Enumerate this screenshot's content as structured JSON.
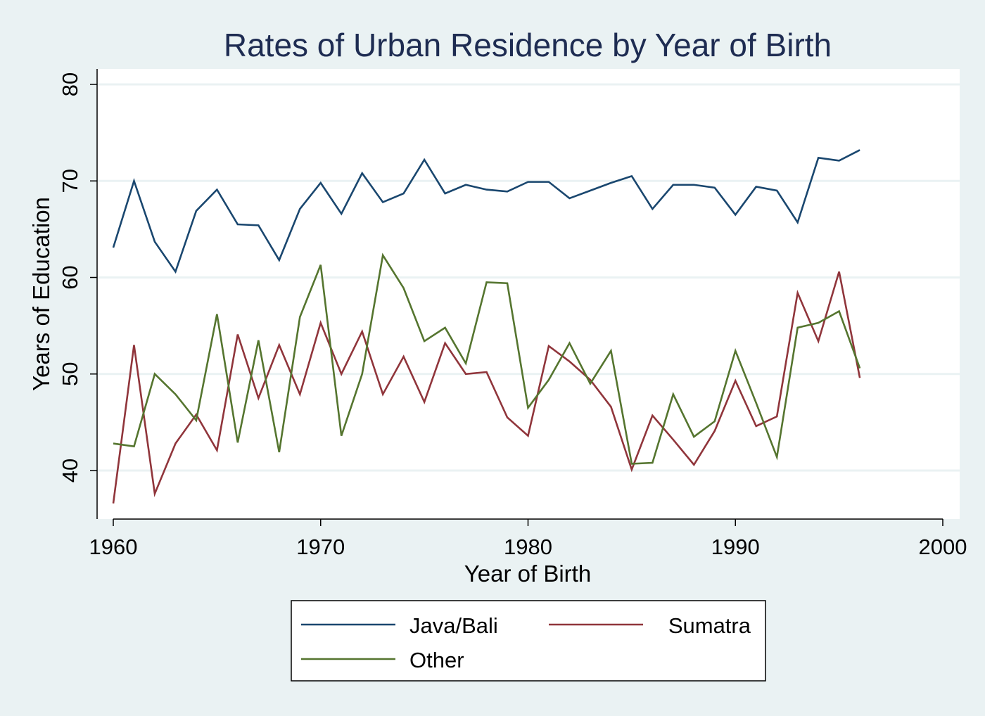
{
  "chart_data": {
    "type": "line",
    "title": "Rates of Urban Residence by Year of Birth",
    "xlabel": "Year of Birth",
    "ylabel": "Years of Education",
    "xlim": [
      1960,
      2000
    ],
    "ylim": [
      35,
      81.5
    ],
    "xticks": [
      1960,
      1970,
      1980,
      1990,
      2000
    ],
    "yticks": [
      40,
      50,
      60,
      70,
      80
    ],
    "grid": "horizontal",
    "legend_position": "bottom",
    "x": [
      1960,
      1961,
      1962,
      1963,
      1964,
      1965,
      1966,
      1967,
      1968,
      1969,
      1970,
      1971,
      1972,
      1973,
      1974,
      1975,
      1976,
      1977,
      1978,
      1979,
      1980,
      1981,
      1982,
      1983,
      1984,
      1985,
      1986,
      1987,
      1988,
      1989,
      1990,
      1991,
      1992,
      1993,
      1994,
      1995,
      1996
    ],
    "series": [
      {
        "name": "Java/Bali",
        "color": "#1a476f",
        "values": [
          63.1,
          70.0,
          63.7,
          60.6,
          66.9,
          69.1,
          65.5,
          65.4,
          61.8,
          67.1,
          69.8,
          66.6,
          70.8,
          67.8,
          68.7,
          72.2,
          68.7,
          69.6,
          69.1,
          68.9,
          69.9,
          69.9,
          68.2,
          69.0,
          69.8,
          70.5,
          67.1,
          69.6,
          69.6,
          69.3,
          66.5,
          69.4,
          69.0,
          65.7,
          72.4,
          72.1,
          73.2
        ]
      },
      {
        "name": "Sumatra",
        "color": "#90353b",
        "values": [
          36.6,
          53.0,
          37.6,
          42.8,
          45.8,
          42.1,
          54.1,
          47.5,
          53.0,
          47.9,
          55.3,
          50.0,
          54.4,
          47.9,
          51.8,
          47.1,
          53.2,
          50.0,
          50.2,
          45.5,
          43.6,
          52.9,
          51.3,
          49.4,
          46.6,
          40.1,
          45.7,
          43.2,
          40.6,
          44.1,
          49.3,
          44.6,
          45.6,
          58.4,
          53.4,
          60.6,
          49.6
        ]
      },
      {
        "name": "Other",
        "color": "#55752f",
        "values": [
          42.8,
          42.5,
          50.0,
          47.9,
          45.2,
          56.2,
          42.9,
          53.5,
          41.9,
          55.9,
          61.3,
          43.6,
          50.0,
          62.3,
          58.9,
          53.4,
          54.8,
          51.1,
          59.5,
          59.4,
          46.5,
          49.4,
          53.2,
          49.0,
          52.4,
          40.7,
          40.8,
          47.9,
          43.5,
          45.1,
          52.4,
          47.0,
          41.4,
          54.8,
          55.3,
          56.5,
          50.6
        ]
      }
    ]
  }
}
